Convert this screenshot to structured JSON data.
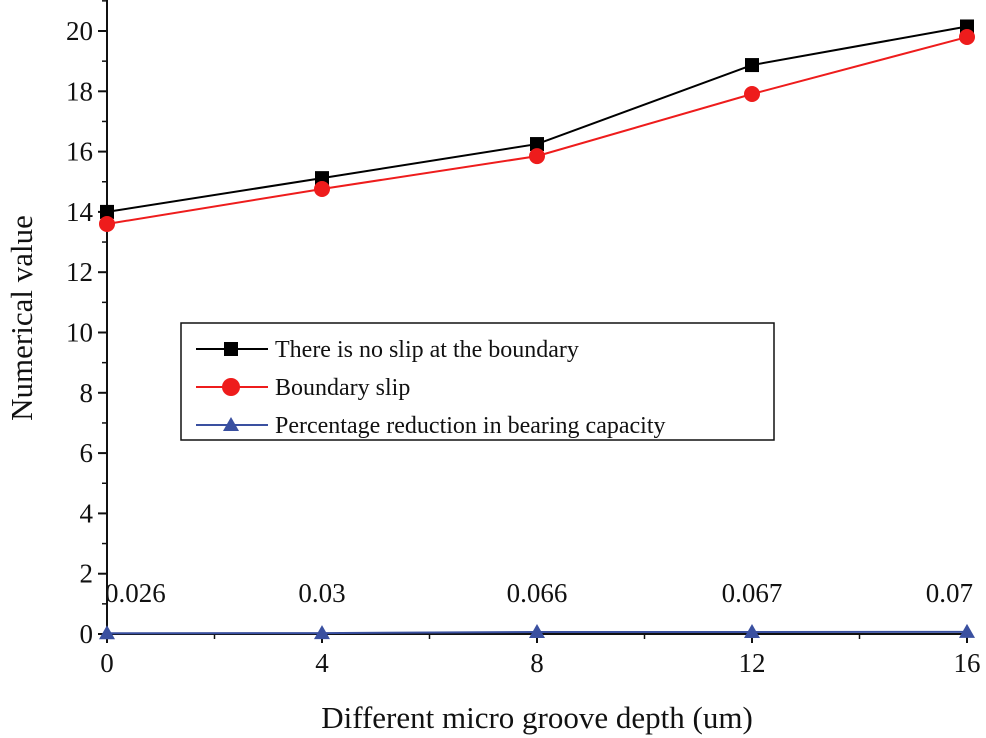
{
  "chart_data": {
    "type": "line",
    "title": "",
    "xlabel": "Different micro groove depth (um)",
    "ylabel": "Numerical value",
    "x": [
      0,
      4,
      8,
      12,
      16
    ],
    "xticks": [
      "0",
      "4",
      "8",
      "12",
      "16"
    ],
    "yticks": [
      "0",
      "2",
      "4",
      "6",
      "8",
      "10",
      "12",
      "14",
      "16",
      "18",
      "20"
    ],
    "xlim": [
      0,
      16
    ],
    "ylim": [
      0,
      21
    ],
    "grid": false,
    "legend_placement": "center-left",
    "series": [
      {
        "name": "There is no slip at the boundary",
        "values": [
          14.0,
          15.12,
          16.25,
          18.87,
          20.15
        ],
        "color": "#000000",
        "marker": "square"
      },
      {
        "name": "Boundary slip",
        "values": [
          13.6,
          14.76,
          15.85,
          17.91,
          19.8
        ],
        "color": "#ee1c1c",
        "marker": "circle"
      },
      {
        "name": "Percentage reduction in bearing capacity",
        "values": [
          0.026,
          0.03,
          0.066,
          0.067,
          0.07
        ],
        "color": "#3a50a0",
        "marker": "triangle"
      }
    ],
    "data_labels": [
      "0.026",
      "0.03",
      "0.066",
      "0.067",
      "0.07"
    ]
  }
}
